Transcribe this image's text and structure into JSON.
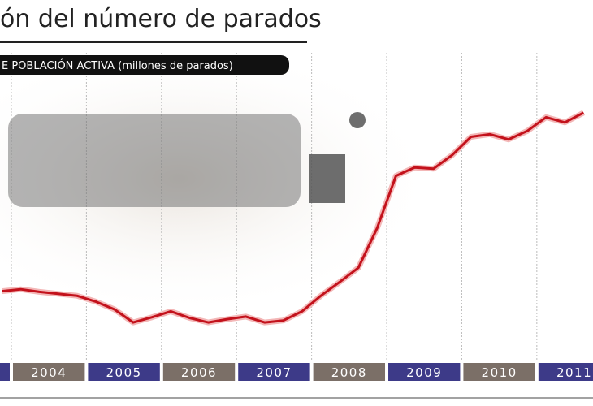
{
  "chart_data": {
    "type": "line",
    "title": "ón del número de parados",
    "subtitle": "E POBLACIÓN ACTIVA (millones de parados)",
    "year_labels": [
      "2004",
      "2005",
      "2006",
      "2007",
      "2008",
      "2009",
      "2010",
      "2011"
    ],
    "band_colors": [
      "#7b6f67",
      "#3d3a88"
    ],
    "x": [
      2003.875,
      2004.125,
      2004.375,
      2004.625,
      2004.875,
      2005.125,
      2005.375,
      2005.625,
      2005.875,
      2006.125,
      2006.375,
      2006.625,
      2006.875,
      2007.125,
      2007.375,
      2007.625,
      2007.875,
      2008.125,
      2008.375,
      2008.625,
      2008.875,
      2009.125,
      2009.375,
      2009.625,
      2009.875,
      2010.125,
      2010.375,
      2010.625,
      2010.875,
      2011.125,
      2011.375,
      2011.625
    ],
    "series": [
      {
        "color": "#c3121c",
        "values": [
          2.24,
          2.27,
          2.23,
          2.2,
          2.17,
          2.08,
          1.96,
          1.76,
          1.84,
          1.93,
          1.83,
          1.76,
          1.81,
          1.85,
          1.76,
          1.79,
          1.93,
          2.17,
          2.38,
          2.6,
          3.21,
          4.01,
          4.14,
          4.12,
          4.33,
          4.61,
          4.65,
          4.57,
          4.7,
          4.91,
          4.83,
          4.98
        ]
      }
    ],
    "xlim": [
      2003.85,
      2011.75
    ],
    "ylim": [
      1.2,
      5.9
    ]
  }
}
